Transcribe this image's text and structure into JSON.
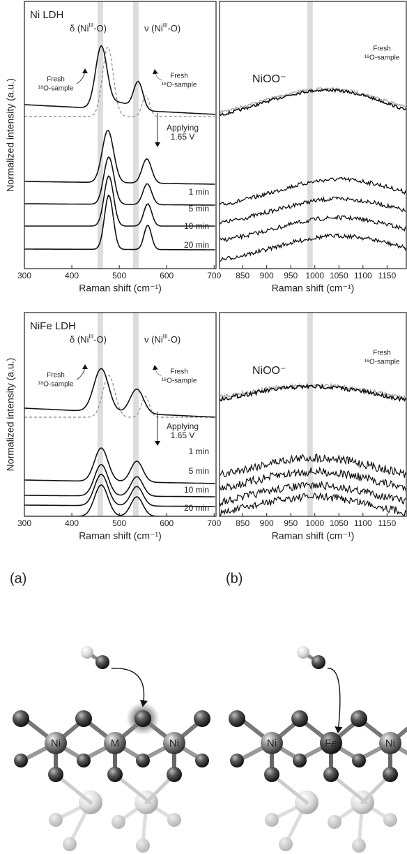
{
  "panels": [
    {
      "title": "Ni LDH",
      "y_axis_label": "Normalized intensity (a.u.)",
      "left": {
        "xlim": [
          300,
          704
        ],
        "xticks": [
          300,
          400,
          500,
          600,
          700
        ],
        "x_axis_label": "Raman shift (cm⁻¹)",
        "bands": [
          460,
          535
        ]
      },
      "right": {
        "xlim": [
          802,
          1190
        ],
        "xticks": [
          850,
          900,
          950,
          1000,
          1050,
          1100,
          1150
        ],
        "x_axis_label": "Raman shift (cm⁻¹)",
        "bands": [
          990
        ]
      },
      "delta": [
        "δ (Ni",
        "III",
        "-O)"
      ],
      "nu": [
        "ν (Ni",
        "III",
        "-O)"
      ],
      "fresh_18": [
        "Fresh",
        "¹⁸O-sample"
      ],
      "fresh_16": [
        "Fresh",
        "¹⁶O-sample"
      ],
      "fresh_16_right": [
        "Fresh",
        "¹⁶O-sample"
      ],
      "species": "NiOO⁻",
      "applying": [
        "Applying",
        "1.65 V"
      ],
      "times": [
        "1 min",
        "5 min",
        "10 min",
        "20 min"
      ]
    },
    {
      "title": "NiFe LDH",
      "y_axis_label": "Normalized intensity (a.u.)",
      "left": {
        "xlim": [
          300,
          704
        ],
        "xticks": [
          300,
          400,
          500,
          600,
          700
        ],
        "x_axis_label": "Raman shift (cm⁻¹)",
        "bands": [
          460,
          535
        ]
      },
      "right": {
        "xlim": [
          802,
          1190
        ],
        "xticks": [
          850,
          900,
          950,
          1000,
          1050,
          1100,
          1150
        ],
        "x_axis_label": "Raman shift (cm⁻¹)",
        "bands": [
          990
        ]
      },
      "delta": [
        "δ (Ni",
        "III",
        "-O)"
      ],
      "nu": [
        "ν (Ni",
        "III",
        "-O)"
      ],
      "fresh_18": [
        "Fresh",
        "¹⁸O-sample"
      ],
      "fresh_16": [
        "Fresh",
        "¹⁶O-sample"
      ],
      "fresh_16_right": [
        "Fresh",
        "¹⁶O-sample"
      ],
      "species": "NiOO⁻",
      "applying": [
        "Applying",
        "1.65 V"
      ],
      "times": [
        "1 min",
        "5 min",
        "10 min",
        "20 min"
      ]
    }
  ],
  "structures": [
    {
      "label": "(a)",
      "atoms": [
        "Ni",
        "M",
        "Ni"
      ]
    },
    {
      "label": "(b)",
      "atoms": [
        "Ni",
        "Fe",
        "Ni"
      ]
    }
  ]
}
